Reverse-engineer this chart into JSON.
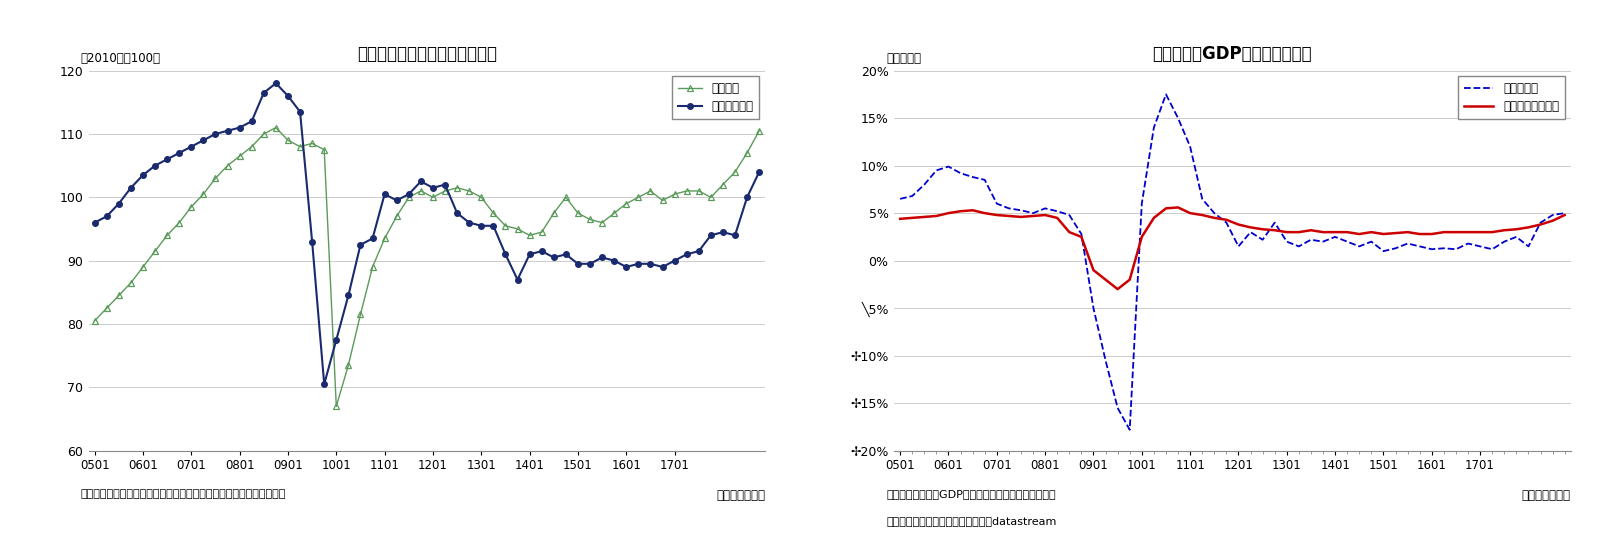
{
  "chart1": {
    "title": "実質輸出、輸出数量指数の推移",
    "ylabel": "（2010年＝100）",
    "xlabel_note": "（年・四半期）",
    "footnote": "（注）実質輸出は日本銀行、輸出数量指数は内閣府による季節調整値",
    "ylim": [
      60,
      120
    ],
    "yticks": [
      60,
      70,
      80,
      90,
      100,
      110,
      120
    ],
    "xtick_labels": [
      "0501",
      "0601",
      "0701",
      "0801",
      "0901",
      "1001",
      "1101",
      "1201",
      "1301",
      "1401",
      "1501",
      "1601",
      "1701"
    ],
    "series1_label": "実質輸出",
    "series1_color": "#5a9a5a",
    "series1_data": [
      80.5,
      82.5,
      84.5,
      86.5,
      89.0,
      91.5,
      94.0,
      96.0,
      98.5,
      100.5,
      103.0,
      105.0,
      106.5,
      108.0,
      110.0,
      111.0,
      109.0,
      108.0,
      108.5,
      107.5,
      67.0,
      73.5,
      81.5,
      89.0,
      93.5,
      97.0,
      100.0,
      101.0,
      100.0,
      101.0,
      101.5,
      101.0,
      100.0,
      97.5,
      95.5,
      95.0,
      94.0,
      94.5,
      97.5,
      100.0,
      97.5,
      96.5,
      96.0,
      97.5,
      99.0,
      100.0,
      101.0,
      99.5,
      100.5,
      101.0,
      101.0,
      100.0,
      102.0,
      104.0,
      107.0,
      110.5
    ],
    "series2_label": "輸出数量指数",
    "series2_color": "#1a2a6e",
    "series2_data": [
      96.0,
      97.0,
      99.0,
      101.5,
      103.5,
      105.0,
      106.0,
      107.0,
      108.0,
      109.0,
      110.0,
      110.5,
      111.0,
      112.0,
      116.5,
      118.0,
      116.0,
      113.5,
      93.0,
      70.5,
      77.5,
      84.5,
      92.5,
      93.5,
      100.5,
      99.5,
      100.5,
      102.5,
      101.5,
      102.0,
      97.5,
      96.0,
      95.5,
      95.5,
      91.0,
      87.0,
      91.0,
      91.5,
      90.5,
      91.0,
      89.5,
      89.5,
      90.5,
      90.0,
      89.0,
      89.5,
      89.5,
      89.0,
      90.0,
      91.0,
      91.5,
      94.0,
      94.5,
      94.0,
      100.0,
      104.0
    ],
    "n_points": 56
  },
  "chart2": {
    "title": "世界の実質GDPと貿易量の関係",
    "ylabel": "（前年比）",
    "xlabel_note": "（年・四半期）",
    "footnote1": "（注）世界の実質GDPはニッセイ基礎研究所の試算値",
    "footnote2": "（出所）オランダ経済政策分析局、datastream",
    "ylim": [
      -0.2,
      0.2
    ],
    "ytick_vals": [
      0.2,
      0.15,
      0.1,
      0.05,
      0.0,
      -0.05,
      -0.1,
      -0.15,
      -0.2
    ],
    "ytick_labels": [
      "20%",
      "15%",
      "10%",
      "5%",
      "0%",
      "╲5%",
      "✢10%",
      "✢15%",
      "✢20%"
    ],
    "xtick_labels": [
      "0501",
      "0601",
      "0701",
      "0801",
      "0901",
      "1001",
      "1101",
      "1201",
      "1301",
      "1401",
      "1501",
      "1601",
      "1701"
    ],
    "series1_label": "世界貿易量",
    "series1_color": "#0000cc",
    "series1_data": [
      0.065,
      0.068,
      0.08,
      0.095,
      0.099,
      0.092,
      0.088,
      0.085,
      0.06,
      0.055,
      0.053,
      0.05,
      0.055,
      0.052,
      0.048,
      0.028,
      -0.05,
      -0.105,
      -0.155,
      -0.178,
      0.06,
      0.14,
      0.175,
      0.15,
      0.12,
      0.065,
      0.05,
      0.04,
      0.015,
      0.03,
      0.022,
      0.04,
      0.02,
      0.015,
      0.022,
      0.02,
      0.025,
      0.02,
      0.015,
      0.02,
      0.01,
      0.013,
      0.018,
      0.015,
      0.012,
      0.013,
      0.012,
      0.018,
      0.015,
      0.012,
      0.02,
      0.025,
      0.015,
      0.04,
      0.048,
      0.05
    ],
    "series2_label": "世界の実質ＧＤＰ",
    "series2_color": "#cc0000",
    "series2_data": [
      0.044,
      0.045,
      0.046,
      0.047,
      0.05,
      0.052,
      0.053,
      0.05,
      0.048,
      0.047,
      0.046,
      0.047,
      0.048,
      0.045,
      0.03,
      0.025,
      -0.01,
      -0.02,
      -0.03,
      -0.02,
      0.025,
      0.045,
      0.055,
      0.056,
      0.05,
      0.048,
      0.045,
      0.043,
      0.038,
      0.035,
      0.033,
      0.032,
      0.03,
      0.03,
      0.032,
      0.03,
      0.03,
      0.03,
      0.028,
      0.03,
      0.028,
      0.029,
      0.03,
      0.028,
      0.028,
      0.03,
      0.03,
      0.03,
      0.03,
      0.03,
      0.032,
      0.033,
      0.035,
      0.038,
      0.042,
      0.048
    ],
    "n_points": 56
  }
}
